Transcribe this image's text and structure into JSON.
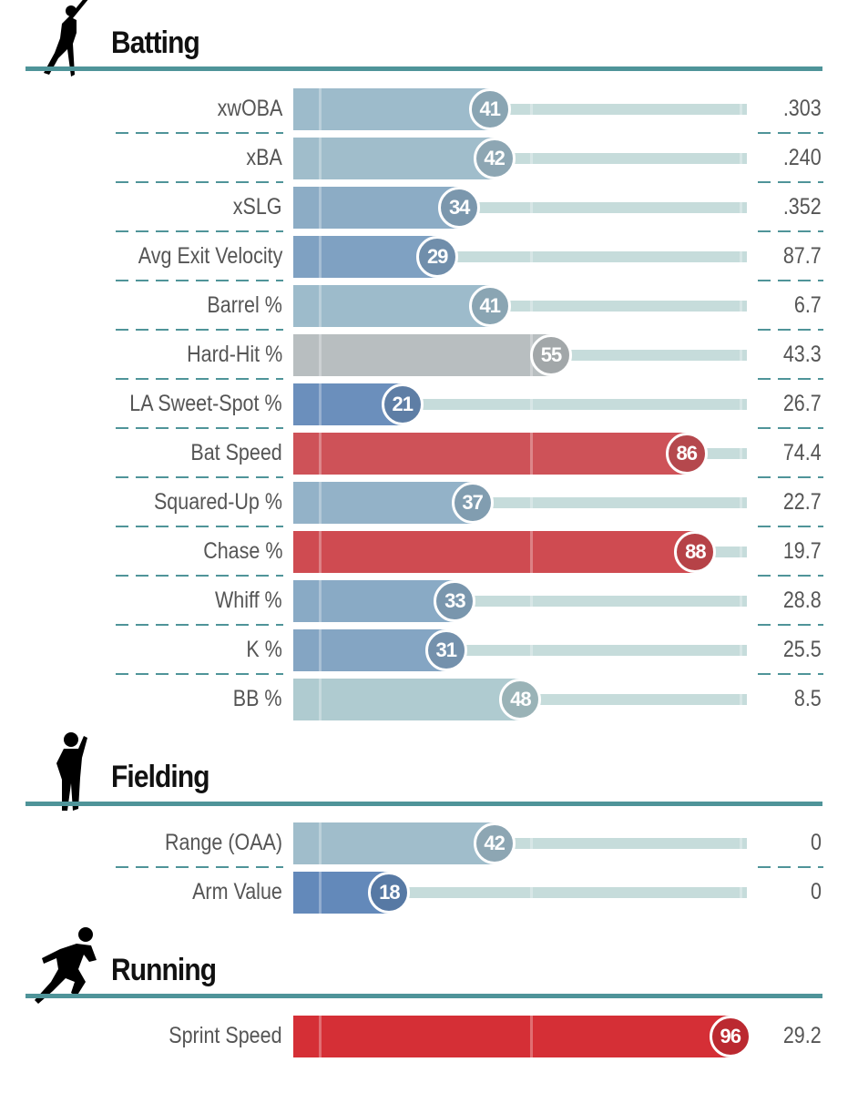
{
  "chart_data": [
    {
      "type": "bar",
      "title": "Batting",
      "icon": "batter-silhouette-icon",
      "xlim": [
        0,
        100
      ],
      "rows": [
        {
          "label": "xwOBA",
          "percentile": 41,
          "value": ".303"
        },
        {
          "label": "xBA",
          "percentile": 42,
          "value": ".240"
        },
        {
          "label": "xSLG",
          "percentile": 34,
          "value": ".352"
        },
        {
          "label": "Avg Exit Velocity",
          "percentile": 29,
          "value": "87.7"
        },
        {
          "label": "Barrel %",
          "percentile": 41,
          "value": "6.7"
        },
        {
          "label": "Hard-Hit %",
          "percentile": 55,
          "value": "43.3"
        },
        {
          "label": "LA Sweet-Spot %",
          "percentile": 21,
          "value": "26.7"
        },
        {
          "label": "Bat Speed",
          "percentile": 86,
          "value": "74.4"
        },
        {
          "label": "Squared-Up %",
          "percentile": 37,
          "value": "22.7"
        },
        {
          "label": "Chase %",
          "percentile": 88,
          "value": "19.7"
        },
        {
          "label": "Whiff %",
          "percentile": 33,
          "value": "28.8"
        },
        {
          "label": "K %",
          "percentile": 31,
          "value": "25.5"
        },
        {
          "label": "BB %",
          "percentile": 48,
          "value": "8.5"
        }
      ]
    },
    {
      "type": "bar",
      "title": "Fielding",
      "icon": "fielder-silhouette-icon",
      "xlim": [
        0,
        100
      ],
      "rows": [
        {
          "label": "Range (OAA)",
          "percentile": 42,
          "value": "0"
        },
        {
          "label": "Arm Value",
          "percentile": 18,
          "value": "0"
        }
      ]
    },
    {
      "type": "bar",
      "title": "Running",
      "icon": "runner-silhouette-icon",
      "xlim": [
        0,
        100
      ],
      "rows": [
        {
          "label": "Sprint Speed",
          "percentile": 96,
          "value": "29.2"
        }
      ]
    }
  ],
  "colors": {
    "low": "#3661ad",
    "mid": "#b4cfd1",
    "high": "#d82129",
    "track": "#c6dcdb",
    "accent": "#4f9499"
  }
}
